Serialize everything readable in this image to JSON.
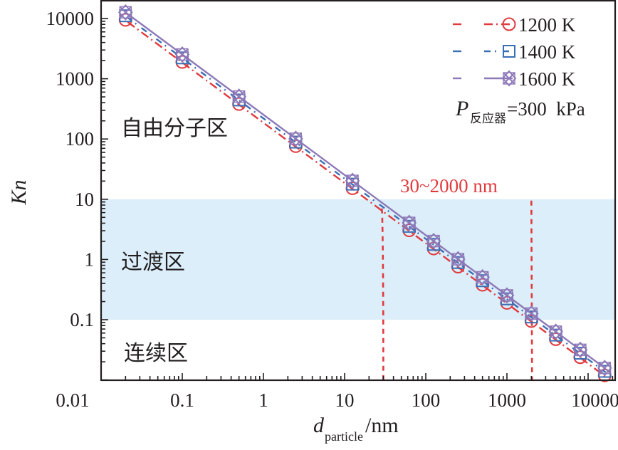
{
  "chart_data": {
    "type": "line",
    "title": "",
    "xlabel": "d_particle/nm",
    "xlabel_main": "d",
    "xlabel_sub": "particle",
    "xlabel_unit": "/nm",
    "ylabel": "Kn",
    "xscale": "log",
    "yscale": "log",
    "xlim": [
      0.01,
      17000
    ],
    "ylim": [
      0.01,
      20000
    ],
    "x_ticks": [
      0.01,
      0.1,
      1,
      10,
      100,
      1000,
      10000
    ],
    "x_tick_labels": [
      "0.01",
      "0.1",
      "1",
      "10",
      "100",
      "1000",
      "10000"
    ],
    "y_ticks": [
      0.1,
      1,
      10,
      100,
      1000,
      10000
    ],
    "y_tick_labels": [
      "0.1",
      "1",
      "10",
      "100",
      "1000",
      "10000"
    ],
    "grid": false,
    "legend_position": "top-right",
    "x": [
      0.02,
      0.1,
      0.5,
      2.5,
      12.5,
      62.5,
      125,
      250,
      500,
      1000,
      2000,
      4000,
      8000,
      16000
    ],
    "series": [
      {
        "name": "1200 K",
        "color": "#e03a3e",
        "line_style": "dash-dot",
        "marker": "circle",
        "values": [
          9500,
          1900,
          380,
          76,
          15.2,
          3.04,
          1.52,
          0.76,
          0.38,
          0.19,
          0.095,
          0.0475,
          0.0238,
          0.0119
        ]
      },
      {
        "name": "1400 K",
        "color": "#3a6fb5",
        "line_style": "dash-dot-sparse",
        "marker": "square",
        "values": [
          11100,
          2220,
          444,
          88.8,
          17.8,
          3.55,
          1.78,
          0.888,
          0.444,
          0.222,
          0.111,
          0.0555,
          0.0278,
          0.0139
        ]
      },
      {
        "name": "1600 K",
        "color": "#8e79b8",
        "line_style": "solid",
        "marker": "crossed-diamond-square",
        "values": [
          12650,
          2530,
          506,
          101,
          20.2,
          4.05,
          2.02,
          1.01,
          0.506,
          0.253,
          0.1265,
          0.0633,
          0.0316,
          0.0158
        ]
      }
    ],
    "regions": [
      {
        "name": "free-molecular",
        "label": "自由分子区",
        "kn_range": [
          10,
          20000
        ],
        "shaded": false
      },
      {
        "name": "transition",
        "label": "过渡区",
        "kn_range": [
          0.1,
          10
        ],
        "shaded": true,
        "color": "#dbeef9"
      },
      {
        "name": "continuum",
        "label": "连续区",
        "kn_range": [
          0.01,
          0.1
        ],
        "shaded": false
      }
    ],
    "annotations": [
      {
        "text": "30~2000 nm",
        "color": "#e03a3e"
      },
      {
        "text_main": "P",
        "text_sub": "反应器",
        "text_value": "=300  kPa"
      }
    ],
    "reference_lines": [
      {
        "orientation": "vertical",
        "x": 30,
        "color": "#e03a3e",
        "style": "dashed"
      },
      {
        "orientation": "vertical",
        "x": 2000,
        "color": "#e03a3e",
        "style": "dashed"
      }
    ]
  }
}
